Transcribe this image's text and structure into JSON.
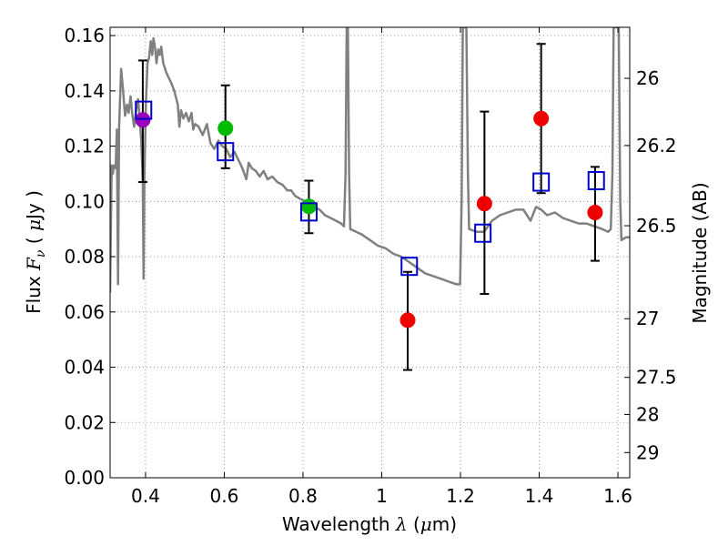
{
  "chart_data": {
    "type": "scatter",
    "xlabel": "Wavelength",
    "xlabel_symbol": "λ",
    "xlabel_unit_open": " (",
    "xlabel_unit_mu": "μ",
    "xlabel_unit_rest": "m)",
    "ylabel": "Flux",
    "ylabel_symbol": "F",
    "ylabel_sub": "ν",
    "ylabel_unit_open": "  ( ",
    "ylabel_unit_mu": "μ",
    "ylabel_unit_rest": "Jy )",
    "y2label": "Magnitude (AB)",
    "xlim": [
      0.31,
      1.63
    ],
    "ylim": [
      0.0,
      0.163
    ],
    "grid": true,
    "x_ticks": [
      0.4,
      0.6,
      0.8,
      1.0,
      1.2,
      1.4,
      1.6
    ],
    "x_tick_labels": [
      "0.4",
      "0.6",
      "0.8",
      "1",
      "1.2",
      "1.4",
      "1.6"
    ],
    "y_ticks": [
      0.0,
      0.02,
      0.04,
      0.06,
      0.08,
      0.1,
      0.12,
      0.14,
      0.16
    ],
    "y_tick_labels": [
      "0.00",
      "0.02",
      "0.04",
      "0.06",
      "0.08",
      "0.10",
      "0.12",
      "0.14",
      "0.16"
    ],
    "mag_ticks": [
      26,
      26.2,
      26.5,
      27,
      27.5,
      28,
      29
    ],
    "mag_tick_labels": [
      "26",
      "26.2",
      "26.5",
      "27",
      "27.5",
      "28",
      "29"
    ],
    "colors": {
      "template": "#808080",
      "model_box": "#0000cc",
      "error_bar": "#000000",
      "grid": "#999999"
    },
    "series": [
      {
        "marker": "circle",
        "points": [
          {
            "x": 0.393,
            "y": 0.1295,
            "color": "#9900bb",
            "err_low": 0.107,
            "err_high": 0.151
          },
          {
            "x": 0.603,
            "y": 0.1265,
            "color": "#00bb00",
            "err_low": 0.112,
            "err_high": 0.142
          },
          {
            "x": 0.815,
            "y": 0.0982,
            "color": "#00bb00",
            "err_low": 0.0885,
            "err_high": 0.1075
          },
          {
            "x": 1.066,
            "y": 0.057,
            "color": "#ee0000",
            "err_low": 0.039,
            "err_high": 0.0745
          },
          {
            "x": 1.261,
            "y": 0.0992,
            "color": "#ee0000",
            "err_low": 0.0665,
            "err_high": 0.1325
          },
          {
            "x": 1.405,
            "y": 0.13,
            "color": "#ee0000",
            "err_low": 0.103,
            "err_high": 0.157
          },
          {
            "x": 1.542,
            "y": 0.096,
            "color": "#ee0000",
            "err_low": 0.0785,
            "err_high": 0.1125
          }
        ]
      },
      {
        "marker": "open-square",
        "points": [
          {
            "x": 0.395,
            "y": 0.133
          },
          {
            "x": 0.603,
            "y": 0.118
          },
          {
            "x": 0.815,
            "y": 0.0962
          },
          {
            "x": 1.07,
            "y": 0.0765
          },
          {
            "x": 1.257,
            "y": 0.0885
          },
          {
            "x": 1.405,
            "y": 0.107
          },
          {
            "x": 1.545,
            "y": 0.1075
          }
        ]
      },
      {
        "marker": "line",
        "points": [
          [
            0.31,
            0.067
          ],
          [
            0.314,
            0.113
          ],
          [
            0.317,
            0.11
          ],
          [
            0.32,
            0.113
          ],
          [
            0.324,
            0.112
          ],
          [
            0.327,
            0.126
          ],
          [
            0.33,
            0.07
          ],
          [
            0.333,
            0.127
          ],
          [
            0.338,
            0.148
          ],
          [
            0.343,
            0.14
          ],
          [
            0.348,
            0.131
          ],
          [
            0.353,
            0.135
          ],
          [
            0.357,
            0.132
          ],
          [
            0.362,
            0.138
          ],
          [
            0.366,
            0.132
          ],
          [
            0.371,
            0.127
          ],
          [
            0.376,
            0.133
          ],
          [
            0.381,
            0.137
          ],
          [
            0.385,
            0.131
          ],
          [
            0.389,
            0.122
          ],
          [
            0.393,
            0.108
          ],
          [
            0.395,
            0.072
          ],
          [
            0.397,
            0.108
          ],
          [
            0.401,
            0.136
          ],
          [
            0.405,
            0.15
          ],
          [
            0.409,
            0.152
          ],
          [
            0.413,
            0.158
          ],
          [
            0.417,
            0.153
          ],
          [
            0.42,
            0.159
          ],
          [
            0.424,
            0.156
          ],
          [
            0.428,
            0.15
          ],
          [
            0.432,
            0.155
          ],
          [
            0.436,
            0.153
          ],
          [
            0.44,
            0.156
          ],
          [
            0.445,
            0.15
          ],
          [
            0.452,
            0.147
          ],
          [
            0.458,
            0.145
          ],
          [
            0.465,
            0.143
          ],
          [
            0.473,
            0.14
          ],
          [
            0.482,
            0.135
          ],
          [
            0.486,
            0.127
          ],
          [
            0.49,
            0.133
          ],
          [
            0.496,
            0.13
          ],
          [
            0.503,
            0.132
          ],
          [
            0.51,
            0.129
          ],
          [
            0.517,
            0.132
          ],
          [
            0.521,
            0.126
          ],
          [
            0.526,
            0.128
          ],
          [
            0.535,
            0.127
          ],
          [
            0.545,
            0.124
          ],
          [
            0.556,
            0.128
          ],
          [
            0.565,
            0.121
          ],
          [
            0.575,
            0.119
          ],
          [
            0.585,
            0.122
          ],
          [
            0.595,
            0.12
          ],
          [
            0.605,
            0.119
          ],
          [
            0.615,
            0.116
          ],
          [
            0.626,
            0.118
          ],
          [
            0.636,
            0.115
          ],
          [
            0.646,
            0.112
          ],
          [
            0.656,
            0.108
          ],
          [
            0.662,
            0.114
          ],
          [
            0.67,
            0.112
          ],
          [
            0.68,
            0.111
          ],
          [
            0.69,
            0.109
          ],
          [
            0.7,
            0.111
          ],
          [
            0.71,
            0.108
          ],
          [
            0.722,
            0.109
          ],
          [
            0.735,
            0.107
          ],
          [
            0.748,
            0.106
          ],
          [
            0.76,
            0.104
          ],
          [
            0.77,
            0.104
          ],
          [
            0.78,
            0.102
          ],
          [
            0.792,
            0.101
          ],
          [
            0.805,
            0.1
          ],
          [
            0.815,
            0.099
          ],
          [
            0.828,
            0.098
          ],
          [
            0.842,
            0.097
          ],
          [
            0.856,
            0.095
          ],
          [
            0.87,
            0.094
          ],
          [
            0.884,
            0.093
          ],
          [
            0.897,
            0.092
          ],
          [
            0.904,
            0.091
          ],
          [
            0.908,
            0.11
          ],
          [
            0.911,
            0.163
          ],
          [
            0.914,
            0.163
          ],
          [
            0.917,
            0.11
          ],
          [
            0.92,
            0.09
          ],
          [
            0.935,
            0.089
          ],
          [
            0.95,
            0.088
          ],
          [
            0.97,
            0.086
          ],
          [
            0.99,
            0.084
          ],
          [
            1.01,
            0.083
          ],
          [
            1.03,
            0.081
          ],
          [
            1.05,
            0.08
          ],
          [
            1.07,
            0.078
          ],
          [
            1.09,
            0.076
          ],
          [
            1.11,
            0.074
          ],
          [
            1.13,
            0.073
          ],
          [
            1.15,
            0.072
          ],
          [
            1.17,
            0.071
          ],
          [
            1.19,
            0.07
          ],
          [
            1.199,
            0.07
          ],
          [
            1.203,
            0.1
          ],
          [
            1.206,
            0.163
          ],
          [
            1.215,
            0.163
          ],
          [
            1.219,
            0.11
          ],
          [
            1.222,
            0.09
          ],
          [
            1.24,
            0.089
          ],
          [
            1.26,
            0.089
          ],
          [
            1.28,
            0.093
          ],
          [
            1.3,
            0.095
          ],
          [
            1.32,
            0.096
          ],
          [
            1.34,
            0.097
          ],
          [
            1.36,
            0.097
          ],
          [
            1.378,
            0.093
          ],
          [
            1.392,
            0.098
          ],
          [
            1.405,
            0.097
          ],
          [
            1.42,
            0.095
          ],
          [
            1.44,
            0.096
          ],
          [
            1.46,
            0.094
          ],
          [
            1.48,
            0.093
          ],
          [
            1.5,
            0.092
          ],
          [
            1.52,
            0.092
          ],
          [
            1.54,
            0.091
          ],
          [
            1.56,
            0.09
          ],
          [
            1.575,
            0.089
          ],
          [
            1.582,
            0.09
          ],
          [
            1.586,
            0.11
          ],
          [
            1.589,
            0.163
          ],
          [
            1.602,
            0.163
          ],
          [
            1.606,
            0.1
          ],
          [
            1.609,
            0.086
          ],
          [
            1.62,
            0.087
          ],
          [
            1.63,
            0.087
          ]
        ]
      }
    ]
  }
}
